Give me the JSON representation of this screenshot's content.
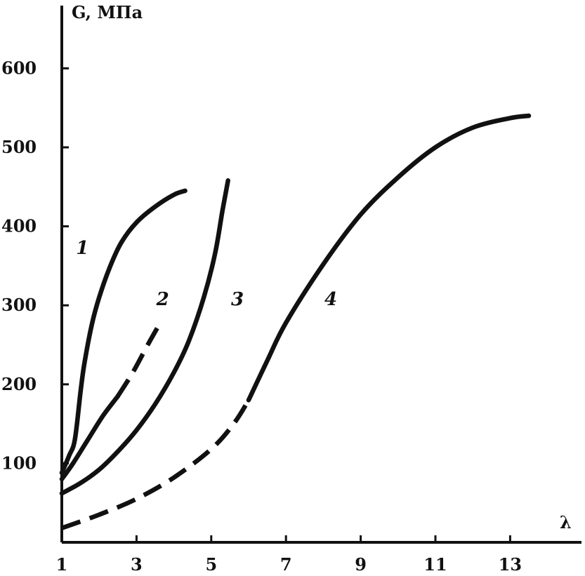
{
  "chart_data": {
    "type": "line",
    "ylabel": "G, МПа",
    "xlabel": "λ",
    "xlim": [
      1,
      14.3
    ],
    "ylim": [
      0,
      670
    ],
    "xticks": [
      1,
      3,
      5,
      7,
      9,
      11,
      13
    ],
    "yticks": [
      100,
      200,
      300,
      400,
      500,
      600
    ],
    "series": [
      {
        "name": "1",
        "segments": [
          {
            "style": "solid",
            "points": [
              [
                1.0,
                88
              ],
              [
                1.2,
                110
              ],
              [
                1.35,
                130
              ],
              [
                1.5,
                190
              ],
              [
                1.6,
                225
              ],
              [
                1.8,
                275
              ],
              [
                2.0,
                310
              ],
              [
                2.3,
                350
              ],
              [
                2.6,
                380
              ],
              [
                3.0,
                405
              ],
              [
                3.5,
                425
              ],
              [
                4.0,
                440
              ],
              [
                4.3,
                445
              ]
            ]
          }
        ]
      },
      {
        "name": "2",
        "segments": [
          {
            "style": "solid",
            "points": [
              [
                1.0,
                80
              ],
              [
                1.3,
                100
              ],
              [
                1.7,
                130
              ],
              [
                2.1,
                160
              ],
              [
                2.5,
                185
              ]
            ]
          },
          {
            "style": "dashed",
            "points": [
              [
                2.5,
                185
              ],
              [
                2.9,
                215
              ],
              [
                3.3,
                250
              ],
              [
                3.6,
                275
              ]
            ]
          }
        ]
      },
      {
        "name": "3",
        "segments": [
          {
            "style": "solid",
            "points": [
              [
                1.0,
                62
              ],
              [
                1.5,
                75
              ],
              [
                2.0,
                92
              ],
              [
                2.5,
                115
              ],
              [
                3.0,
                142
              ],
              [
                3.5,
                175
              ],
              [
                4.0,
                215
              ],
              [
                4.4,
                255
              ],
              [
                4.8,
                310
              ],
              [
                5.1,
                365
              ],
              [
                5.3,
                420
              ],
              [
                5.45,
                458
              ]
            ]
          }
        ]
      },
      {
        "name": "4",
        "segments": [
          {
            "style": "dashed",
            "points": [
              [
                1.0,
                18
              ],
              [
                2.0,
                35
              ],
              [
                3.0,
                55
              ],
              [
                4.0,
                82
              ],
              [
                5.0,
                118
              ],
              [
                5.6,
                150
              ],
              [
                6.0,
                180
              ]
            ]
          },
          {
            "style": "solid",
            "points": [
              [
                6.0,
                180
              ],
              [
                6.5,
                230
              ],
              [
                7.0,
                278
              ],
              [
                8.0,
                352
              ],
              [
                9.0,
                415
              ],
              [
                10.0,
                462
              ],
              [
                11.0,
                500
              ],
              [
                12.0,
                525
              ],
              [
                13.0,
                537
              ],
              [
                13.5,
                540
              ]
            ]
          }
        ]
      }
    ],
    "annotations": [
      {
        "text": "1",
        "x": 1.55,
        "y": 365
      },
      {
        "text": "2",
        "x": 3.7,
        "y": 300
      },
      {
        "text": "3",
        "x": 5.7,
        "y": 300
      },
      {
        "text": "4",
        "x": 8.2,
        "y": 300
      }
    ]
  }
}
